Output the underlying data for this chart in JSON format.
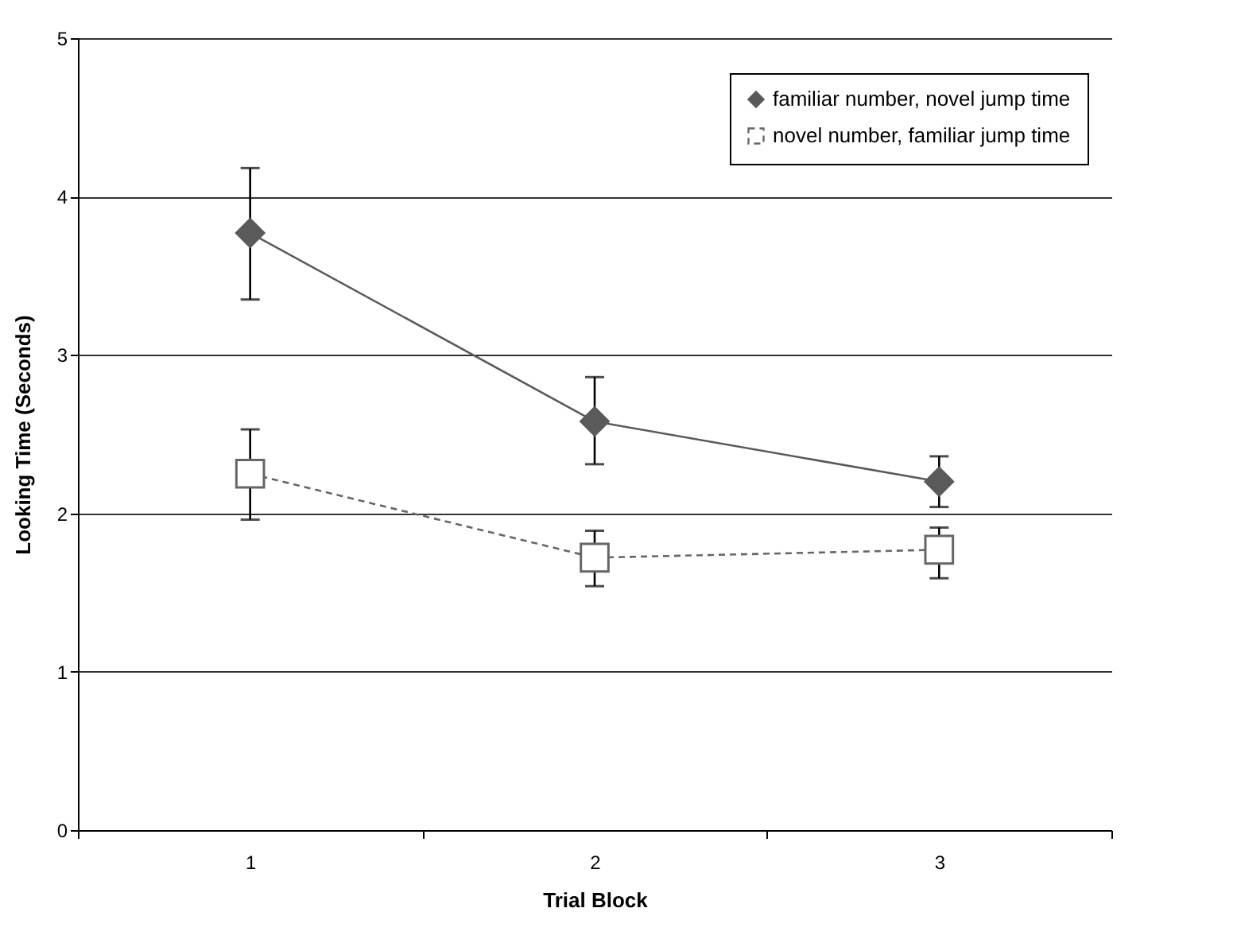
{
  "chart_data": {
    "type": "line",
    "xlabel": "Trial Block",
    "ylabel": "Looking Time (Seconds)",
    "categories": [
      "1",
      "2",
      "3"
    ],
    "series": [
      {
        "name": "familiar number, novel jump time",
        "color": "#5a5a5a",
        "marker": "diamond",
        "line_style": "solid",
        "values": [
          3.77,
          2.58,
          2.2
        ],
        "errors": [
          [
            3.35,
            4.18
          ],
          [
            2.31,
            2.86
          ],
          [
            2.04,
            2.36
          ]
        ]
      },
      {
        "name": "novel number, familiar jump time",
        "color": "#666666",
        "marker": "square",
        "line_style": "dashed",
        "values": [
          2.25,
          1.72,
          1.77
        ],
        "errors": [
          [
            1.96,
            2.53
          ],
          [
            1.54,
            1.89
          ],
          [
            1.59,
            1.91
          ]
        ]
      }
    ],
    "ylim": [
      0,
      5
    ],
    "yticks": [
      0,
      1,
      2,
      3,
      4,
      5
    ],
    "grid": "y",
    "legend": "top right"
  }
}
